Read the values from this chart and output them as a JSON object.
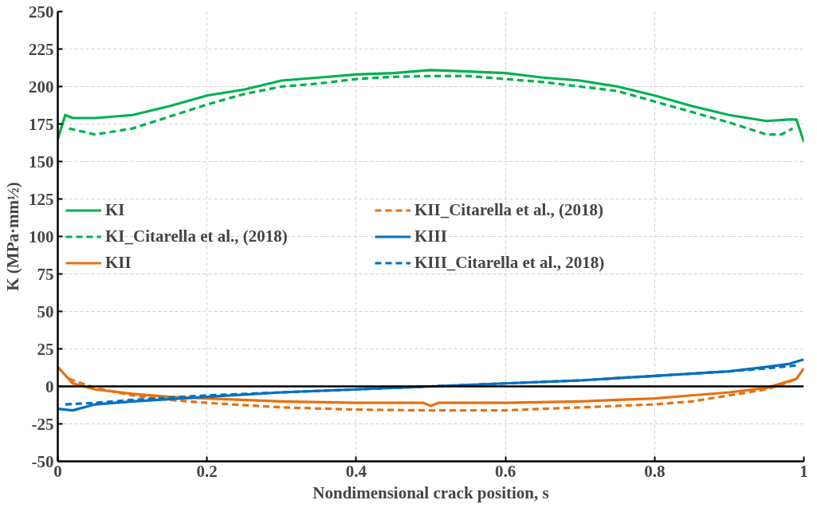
{
  "chart_data": {
    "type": "line",
    "xlabel": "Nondimensional crack position, s",
    "ylabel": "K (MPa·mm½)",
    "xlim": [
      0,
      1
    ],
    "ylim": [
      -50,
      250
    ],
    "xticks": [
      0,
      0.2,
      0.4,
      0.6,
      0.8,
      1
    ],
    "yticks": [
      -50,
      -25,
      0,
      25,
      50,
      75,
      100,
      125,
      150,
      175,
      200,
      225,
      250
    ],
    "grid": true,
    "legend": "left",
    "marker": "none",
    "ref_lines": [
      {
        "axis": "y",
        "value": 0,
        "color": "#000000"
      }
    ],
    "series": [
      {
        "name": "KI",
        "color": "#00b050",
        "line_style": "solid",
        "x": [
          0,
          0.01,
          0.02,
          0.05,
          0.1,
          0.15,
          0.2,
          0.25,
          0.3,
          0.35,
          0.4,
          0.45,
          0.5,
          0.55,
          0.6,
          0.65,
          0.7,
          0.75,
          0.8,
          0.85,
          0.9,
          0.95,
          0.98,
          0.99,
          1.0
        ],
        "values": [
          165,
          181,
          179,
          179,
          181,
          187,
          194,
          198,
          204,
          206,
          208,
          209,
          211,
          210,
          209,
          206,
          204,
          200,
          194,
          187,
          181,
          177,
          178,
          178,
          163
        ]
      },
      {
        "name": "KI_Citarella et al., (2018)",
        "color": "#00b050",
        "line_style": "dashed",
        "x": [
          0.015,
          0.05,
          0.1,
          0.15,
          0.2,
          0.25,
          0.3,
          0.35,
          0.4,
          0.45,
          0.5,
          0.55,
          0.6,
          0.65,
          0.7,
          0.75,
          0.8,
          0.85,
          0.9,
          0.95,
          0.97,
          0.985
        ],
        "values": [
          172,
          168,
          172,
          180,
          188,
          195,
          200,
          202,
          205,
          206.5,
          207,
          207,
          205,
          203,
          200,
          197,
          190,
          183,
          176,
          168,
          168,
          172
        ]
      },
      {
        "name": "KII",
        "color": "#e8700f",
        "line_style": "solid",
        "x": [
          0,
          0.02,
          0.05,
          0.1,
          0.15,
          0.2,
          0.3,
          0.4,
          0.49,
          0.5,
          0.51,
          0.6,
          0.7,
          0.8,
          0.85,
          0.9,
          0.95,
          0.97,
          0.99,
          1.0
        ],
        "values": [
          13,
          2,
          -2,
          -5,
          -7,
          -8,
          -10,
          -11,
          -11,
          -13,
          -11,
          -11,
          -10,
          -8,
          -6,
          -4,
          -1,
          2,
          5,
          12
        ]
      },
      {
        "name": "KII_Citarella et al., (2018)",
        "color": "#e8700f",
        "line_style": "dashed",
        "x": [
          0.015,
          0.05,
          0.1,
          0.15,
          0.2,
          0.3,
          0.4,
          0.5,
          0.6,
          0.7,
          0.8,
          0.85,
          0.9,
          0.95,
          0.98,
          0.99
        ],
        "values": [
          5,
          -1,
          -6,
          -9,
          -11,
          -14,
          -15.5,
          -16,
          -16,
          -14,
          -12,
          -10,
          -6,
          -2,
          3,
          5
        ]
      },
      {
        "name": "KIII",
        "color": "#0070c0",
        "line_style": "solid",
        "x": [
          0,
          0.02,
          0.05,
          0.1,
          0.2,
          0.3,
          0.4,
          0.5,
          0.6,
          0.7,
          0.8,
          0.9,
          0.95,
          0.98,
          1.0
        ],
        "values": [
          -15,
          -16,
          -12,
          -10,
          -7,
          -4,
          -2,
          0,
          2,
          4,
          7,
          10,
          13,
          15,
          18
        ]
      },
      {
        "name": "KIII_Citarella et al., 2018)",
        "color": "#0070c0",
        "line_style": "dashed",
        "x": [
          0.01,
          0.05,
          0.1,
          0.2,
          0.3,
          0.4,
          0.5,
          0.6,
          0.7,
          0.8,
          0.9,
          0.95,
          0.99
        ],
        "values": [
          -12,
          -11,
          -9,
          -6,
          -4,
          -2,
          0,
          2,
          4,
          7,
          10,
          12,
          14
        ]
      }
    ]
  }
}
